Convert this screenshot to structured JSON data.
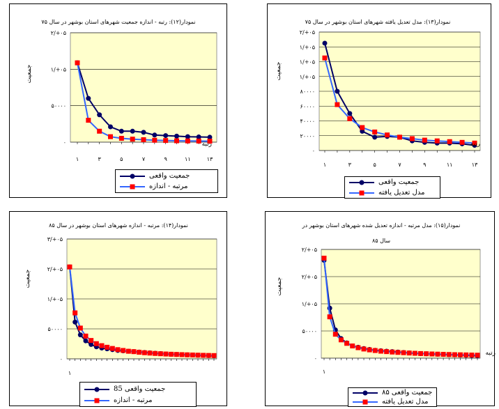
{
  "colors": {
    "plot_bg": "#ffffcc",
    "grid": "#000000",
    "series_actual": "#000066",
    "series_model": "#3366ff",
    "marker_model": "#ff0000"
  },
  "chart_data": [
    {
      "id": "c12",
      "type": "line",
      "title": [
        "نمودار(۱۲): رتبه - اندازه جمعیت شهرهای استان بوشهر در سال ۷۵"
      ],
      "ylabel": "جمعیت",
      "xlabel": "رتبه",
      "y_ticks": [
        "۲/+۰۵",
        "۱/+۰۵",
        "۵۰۰۰۰",
        "۰"
      ],
      "x_ticks": [
        "۱",
        "۳",
        "۵",
        "۷",
        "۹",
        "۱۱",
        "۱۳"
      ],
      "ylim": [
        0,
        200000
      ],
      "series": [
        {
          "name": "جمعیت واقعی",
          "values": [
            145000,
            80000,
            50000,
            28000,
            20000,
            20000,
            18000,
            13000,
            12000,
            11000,
            10000,
            9500,
            9000
          ]
        },
        {
          "name": "مرتبه - اندازه",
          "values": [
            145000,
            40000,
            20000,
            10000,
            7000,
            5500,
            4500,
            3500,
            3000,
            2500,
            2200,
            2000,
            1800
          ]
        }
      ],
      "legend": [
        "جمعیت واقعی",
        "مرتبه - اندازه"
      ]
    },
    {
      "id": "c13",
      "type": "line",
      "title": [
        "نمودار(۱۳): مدل تعدیل یافته شهرهای استان بوشهر در سال ۷۵"
      ],
      "ylabel": "جمعیت",
      "xlabel": "رتبه",
      "y_ticks": [
        "۲/+۰۵",
        "۱/+۰۵",
        "۱/+۰۵",
        "۱/+۰۵",
        "۸۰۰۰۰",
        "۶۰۰۰۰",
        "۴۰۰۰۰",
        "۲۰۰۰۰",
        "۰"
      ],
      "x_ticks": [
        "۱",
        "۳",
        "۵",
        "۷",
        "۹",
        "۱۱",
        "۱۳"
      ],
      "ylim": [
        0,
        160000
      ],
      "series": [
        {
          "name": "جمعیت واقعی",
          "values": [
            145000,
            80000,
            50000,
            26000,
            18000,
            19000,
            18000,
            13000,
            11000,
            10000,
            10000,
            9000,
            7000
          ]
        },
        {
          "name": "مدل تعدیل یافته",
          "values": [
            125000,
            62000,
            43000,
            31000,
            25000,
            21000,
            18000,
            16000,
            14000,
            13000,
            12000,
            11000,
            10000
          ]
        }
      ],
      "legend": [
        "جمعیت واقعی",
        "مدل تعدیل یافته"
      ]
    },
    {
      "id": "c14",
      "type": "line",
      "title": [
        "نمودار(۱۴): مرتبه - اندازه شهرهای استان بوشهر در سال ۸۵"
      ],
      "ylabel": "جمعیت",
      "xlabel": "",
      "y_ticks": [
        "۳/+۰۵",
        "۲/+۰۵",
        "۱/+۰۵",
        "۵۰۰۰۰",
        "۰"
      ],
      "x_ticks": [
        "۱"
      ],
      "ylim": [
        0,
        300000
      ],
      "series": [
        {
          "name": "جمعیت واقعی 85",
          "values": [
            230000,
            92000,
            60000,
            45000,
            36000,
            30000,
            27000,
            25000,
            23000,
            21000,
            20000,
            19000,
            18000,
            17000,
            16000,
            15000,
            14000,
            13000,
            12000,
            11500,
            11000,
            10500,
            10000,
            9500,
            9000,
            8500,
            8000,
            7500
          ]
        },
        {
          "name": "مرتبه - اندازه",
          "values": [
            230000,
            115000,
            77000,
            57000,
            46000,
            38000,
            33000,
            29000,
            26000,
            23000,
            21000,
            19000,
            18000,
            16500,
            15300,
            14400,
            13500,
            12800,
            12100,
            11500,
            11000,
            10500,
            10000,
            9600,
            9200,
            8800,
            8500,
            8200
          ]
        }
      ],
      "legend": [
        "جمعیت واقعی 85",
        "مرتبه - اندازه"
      ]
    },
    {
      "id": "c15",
      "type": "line",
      "title": [
        "نمودار(۱۵): مدل مرتبه - اندازه تعدیل شده شهرهای استان بوشهر در",
        "سال ۸۵"
      ],
      "ylabel": "جمعیت",
      "xlabel": "رتبه",
      "y_ticks": [
        "۲/+۰۵",
        "۲/+۰۵",
        "۱/+۰۵",
        "۵۰۰۰۰",
        "۰"
      ],
      "x_ticks": [
        "۱"
      ],
      "ylim": [
        0,
        250000
      ],
      "series": [
        {
          "name": "جمعیت واقعی ۸۵",
          "values": [
            225000,
            115000,
            65000,
            45000,
            35000,
            28000,
            25000,
            22000,
            20000,
            18000,
            17000,
            16000,
            15000,
            14000,
            13000,
            12000,
            11000,
            10500,
            10000,
            9500,
            9000,
            8500,
            8000,
            7500,
            7000,
            6500,
            6000,
            5500
          ]
        },
        {
          "name": "مدل تعدیل یافته",
          "values": [
            230000,
            95000,
            55000,
            42000,
            34000,
            28000,
            24000,
            21000,
            19000,
            17500,
            16000,
            15000,
            14000,
            13200,
            12500,
            11800,
            11200,
            10600,
            10100,
            9600,
            9200,
            8800,
            8400,
            8000,
            7700,
            7400,
            7100,
            6800
          ]
        }
      ],
      "legend": [
        "جمعیت واقعی ۸۵",
        "مدل تعدیل یافته"
      ]
    }
  ]
}
